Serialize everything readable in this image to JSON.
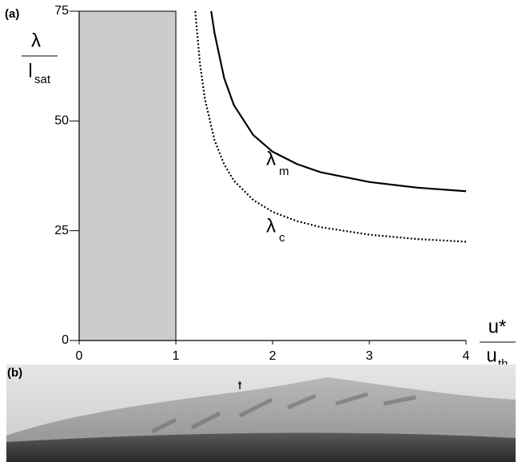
{
  "chart_data": {
    "type": "line",
    "panel_label": "(a)",
    "y_label": "λ",
    "y_label_denominator": "l",
    "y_label_denominator_sub": "sat",
    "x_label": "u*",
    "x_label_denominator": "u",
    "x_label_denominator_sub": "th",
    "xlim": [
      0,
      4
    ],
    "ylim": [
      0,
      75
    ],
    "xticks": [
      0,
      1,
      2,
      3,
      4
    ],
    "yticks": [
      0,
      25,
      50,
      75
    ],
    "shaded_region": [
      0,
      1
    ],
    "shaded_color": "#cccccc",
    "series": [
      {
        "name": "λ",
        "name_sub": "m",
        "color": "#000000",
        "style": "solid",
        "x": [
          1.365,
          1.4,
          1.5,
          1.6,
          1.8,
          2,
          2.25,
          2.5,
          3,
          3.5,
          4
        ],
        "values": [
          75,
          70.0,
          59.7,
          53.6,
          46.8,
          43.0,
          40.2,
          38.3,
          36.1,
          34.8,
          34.0
        ]
      },
      {
        "name": "λ",
        "name_sub": "c",
        "color": "#000000",
        "style": "dotted",
        "x": [
          1.2,
          1.25,
          1.3,
          1.4,
          1.5,
          1.6,
          1.8,
          2,
          2.25,
          2.5,
          3,
          3.5,
          4
        ],
        "values": [
          75,
          62.9,
          55.0,
          45.6,
          40.1,
          36.4,
          32.0,
          29.3,
          27.2,
          25.8,
          24.1,
          23.1,
          22.5
        ]
      }
    ]
  },
  "photo": {
    "panel_label": "(b)"
  }
}
